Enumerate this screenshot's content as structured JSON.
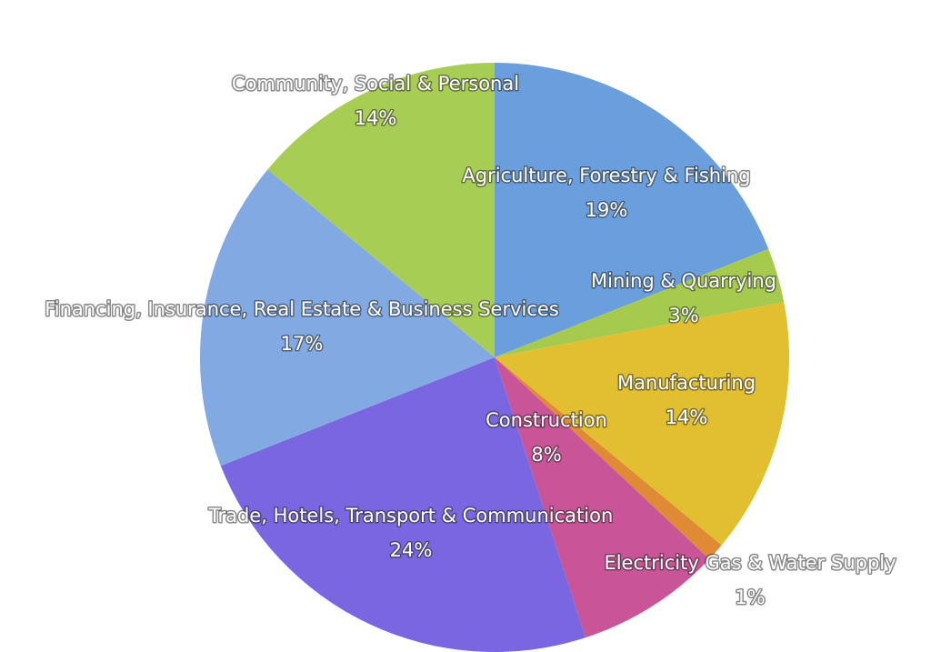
{
  "chart_data": {
    "type": "pie",
    "title": "",
    "slices": [
      {
        "name": "Agriculture, Forestry & Fishing",
        "value": 19,
        "label": "19%",
        "color": "#6b9edc"
      },
      {
        "name": "Mining & Quarrying",
        "value": 3,
        "label": "3%",
        "color": "#a5ca4e"
      },
      {
        "name": "Manufacturing",
        "value": 14,
        "label": "14%",
        "color": "#e2bf30"
      },
      {
        "name": "Electricity Gas & Water Supply",
        "value": 1,
        "label": "1%",
        "color": "#e08a35"
      },
      {
        "name": "Construction",
        "value": 8,
        "label": "8%",
        "color": "#c95598"
      },
      {
        "name": "Trade, Hotels, Transport & Communication",
        "value": 24,
        "label": "24%",
        "color": "#7a66e0"
      },
      {
        "name": "Financing, Insurance, Real Estate & Business Services",
        "value": 17,
        "label": "17%",
        "color": "#82a9e2"
      },
      {
        "name": "Community, Social & Personal",
        "value": 14,
        "label": "14%",
        "color": "#a8cd55"
      }
    ],
    "legend": "none"
  }
}
